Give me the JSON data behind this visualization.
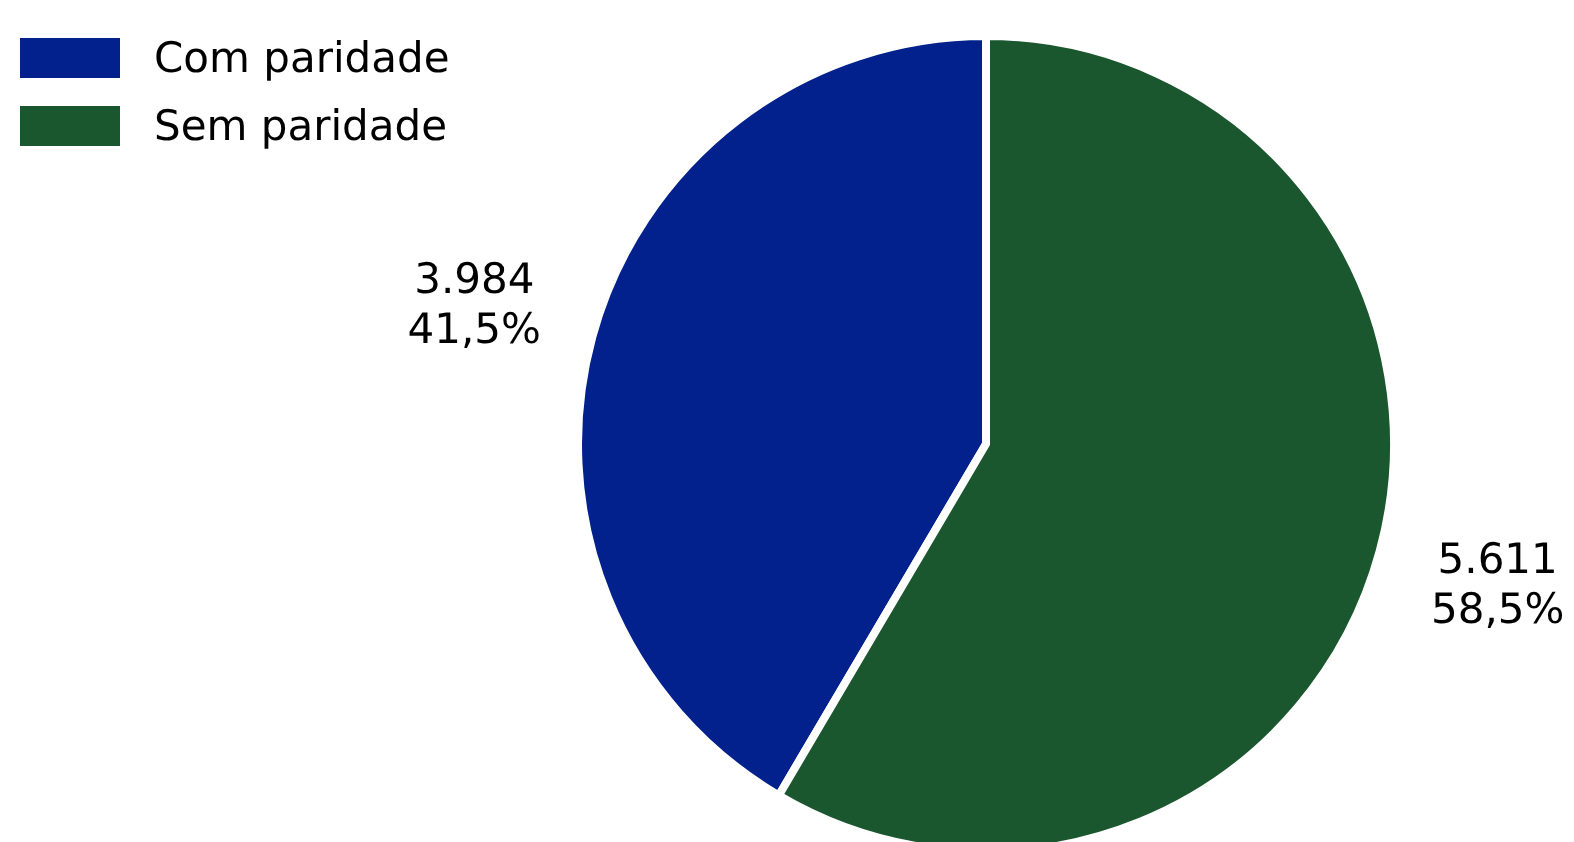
{
  "chart_data": {
    "type": "pie",
    "categories": [
      "Com paridade",
      "Sem paridade"
    ],
    "values": [
      3984,
      5611
    ],
    "colors": [
      "#03218c",
      "#1a562e"
    ],
    "value_labels": [
      "3.984\n41,5%",
      "5.611\n58,5%"
    ],
    "legend": "top left"
  }
}
